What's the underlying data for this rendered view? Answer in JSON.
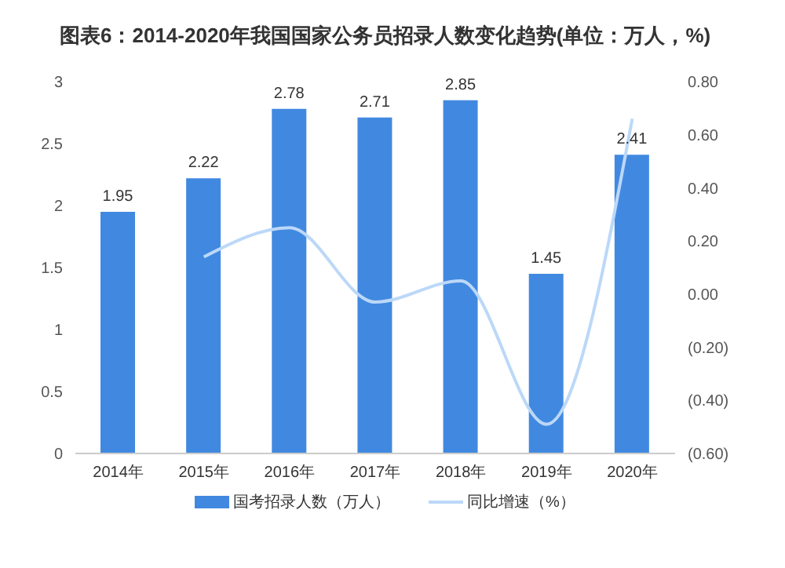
{
  "chart_data": {
    "type": "bar",
    "title": "图表6：2014-2020年我国国家公务员招录人数变化趋势(单位：万人，%)",
    "categories": [
      "2014年",
      "2015年",
      "2016年",
      "2017年",
      "2018年",
      "2019年",
      "2020年"
    ],
    "series": [
      {
        "name": "国考招录人数（万人）",
        "color": "#4189e0",
        "values": [
          1.95,
          2.22,
          2.78,
          2.71,
          2.85,
          1.45,
          2.41
        ],
        "value_labels": [
          "1.95",
          "2.22",
          "2.78",
          "2.71",
          "2.85",
          "1.45",
          "2.41"
        ]
      },
      {
        "name": "同比增速（%）",
        "type": "line",
        "axis": "y2",
        "color": "#bcd8f8",
        "values": [
          null,
          0.14,
          0.25,
          -0.03,
          0.05,
          -0.49,
          0.66
        ]
      }
    ],
    "ylim": [
      0,
      3
    ],
    "yticks": [
      0,
      0.5,
      1,
      1.5,
      2,
      2.5,
      3
    ],
    "y2lim": [
      -0.6,
      0.8
    ],
    "y2ticks": [
      {
        "value": -0.6,
        "label": "(0.60)"
      },
      {
        "value": -0.4,
        "label": "(0.40)"
      },
      {
        "value": -0.2,
        "label": "(0.20)"
      },
      {
        "value": 0,
        "label": "0.00"
      },
      {
        "value": 0.2,
        "label": "0.20"
      },
      {
        "value": 0.4,
        "label": "0.40"
      },
      {
        "value": 0.6,
        "label": "0.60"
      },
      {
        "value": 0.8,
        "label": "0.80"
      }
    ],
    "grid": false,
    "legend": "bottom",
    "marker": "none",
    "line_style": "solid"
  }
}
